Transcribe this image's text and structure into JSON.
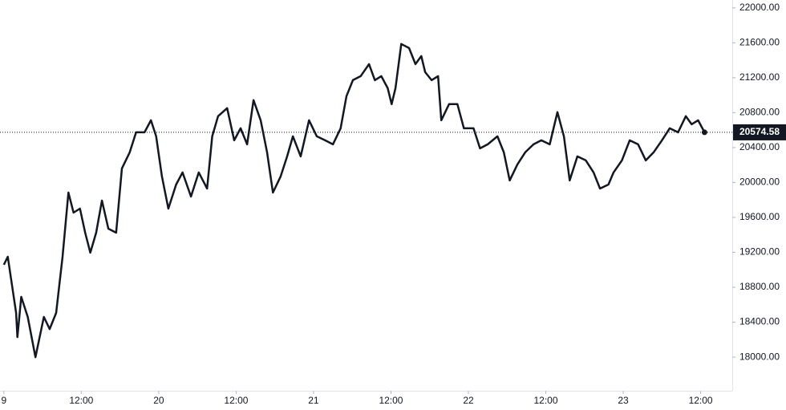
{
  "chart_data": {
    "type": "line",
    "color": "#131722",
    "x": [
      0,
      0.6,
      1.9,
      2.1,
      2.7,
      3.7,
      4.9,
      6.2,
      7.1,
      8.1,
      9.1,
      10.0,
      10.8,
      11.8,
      12.6,
      13.4,
      14.3,
      15.2,
      16.2,
      17.4,
      18.3,
      19.5,
      20.5,
      21.8,
      22.8,
      23.6,
      24.5,
      25.5,
      26.7,
      27.7,
      29.0,
      30.2,
      31.5,
      32.3,
      33.2,
      34.6,
      35.7,
      36.7,
      37.7,
      38.7,
      39.8,
      40.8,
      41.7,
      42.9,
      43.9,
      44.8,
      46.0,
      47.3,
      48.5,
      49.8,
      51.0,
      52.2,
      53.1,
      54.1,
      55.3,
      56.6,
      57.5,
      58.5,
      59.5,
      60.1,
      60.7,
      61.6,
      62.8,
      63.8,
      64.7,
      65.3,
      66.3,
      67.3,
      67.8,
      69.0,
      70.3,
      71.3,
      72.8,
      73.8,
      75.0,
      76.5,
      77.5,
      78.4,
      79.6,
      80.8,
      82.1,
      83.3,
      84.6,
      85.8,
      86.8,
      87.7,
      88.9,
      90.2,
      91.4,
      92.4,
      93.7,
      94.5,
      95.8,
      97.0,
      98.3,
      99.5,
      100.7,
      102.0,
      103.2,
      104.5,
      105.7,
      106.6,
      107.6,
      108.6
    ],
    "values": [
      19058,
      19150,
      18506,
      18230,
      18690,
      18460,
      18000,
      18460,
      18322,
      18506,
      19150,
      19885,
      19655,
      19701,
      19425,
      19196,
      19425,
      19793,
      19471,
      19425,
      20161,
      20345,
      20575,
      20575,
      20713,
      20529,
      20069,
      19701,
      19977,
      20115,
      19839,
      20115,
      19931,
      20529,
      20759,
      20851,
      20483,
      20621,
      20437,
      20943,
      20713,
      20345,
      19885,
      20069,
      20299,
      20529,
      20299,
      20713,
      20529,
      20483,
      20437,
      20621,
      20989,
      21172,
      21218,
      21356,
      21172,
      21218,
      21080,
      20897,
      21080,
      21586,
      21540,
      21356,
      21448,
      21264,
      21172,
      21218,
      20713,
      20897,
      20897,
      20621,
      20621,
      20391,
      20437,
      20529,
      20345,
      20023,
      20207,
      20345,
      20437,
      20483,
      20437,
      20805,
      20529,
      20023,
      20299,
      20253,
      20115,
      19931,
      19977,
      20115,
      20253,
      20483,
      20437,
      20253,
      20345,
      20483,
      20621,
      20575,
      20759,
      20667,
      20713,
      20574.58
    ],
    "last_price": 20574.58,
    "xlim": [
      -0.6,
      112.9
    ],
    "ylim": [
      17615,
      22090
    ],
    "xticks": [
      {
        "value": 0,
        "label": "9"
      },
      {
        "value": 12,
        "label": "12:00"
      },
      {
        "value": 24,
        "label": "20"
      },
      {
        "value": 36,
        "label": "12:00"
      },
      {
        "value": 48,
        "label": "21"
      },
      {
        "value": 60,
        "label": "12:00"
      },
      {
        "value": 72,
        "label": "22"
      },
      {
        "value": 84,
        "label": "12:00"
      },
      {
        "value": 96,
        "label": "23"
      },
      {
        "value": 108,
        "label": "12:00"
      }
    ],
    "yticks": [
      {
        "value": 18000,
        "label": "18000.00"
      },
      {
        "value": 18400,
        "label": "18400.00"
      },
      {
        "value": 18800,
        "label": "18800.00"
      },
      {
        "value": 19200,
        "label": "19200.00"
      },
      {
        "value": 19600,
        "label": "19600.00"
      },
      {
        "value": 20000,
        "label": "20000.00"
      },
      {
        "value": 20400,
        "label": "20400.00"
      },
      {
        "value": 20800,
        "label": "20800.00"
      },
      {
        "value": 21200,
        "label": "21200.00"
      },
      {
        "value": 21600,
        "label": "21600.00"
      },
      {
        "value": 22000,
        "label": "22000.00"
      }
    ]
  }
}
